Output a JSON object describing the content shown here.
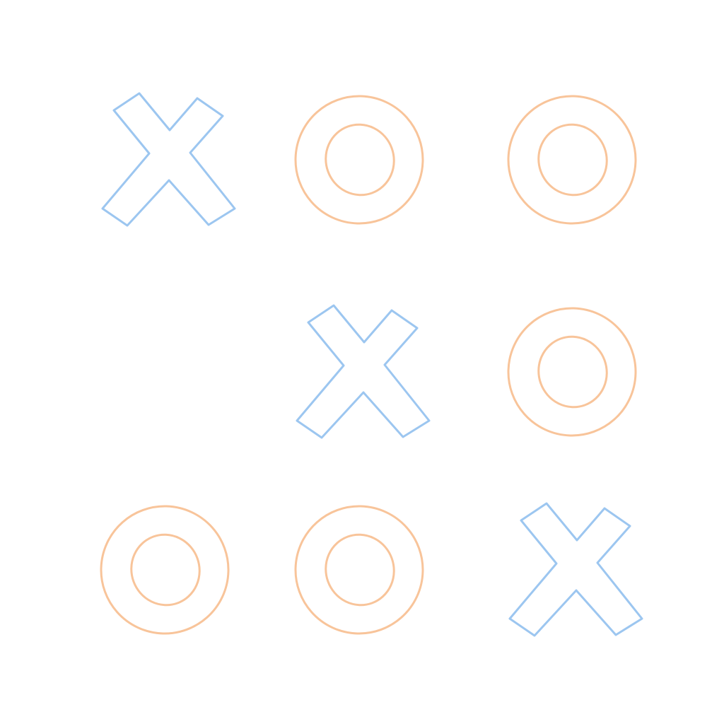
{
  "game": {
    "board": [
      [
        "X",
        "O",
        "O"
      ],
      [
        "",
        "X",
        "O"
      ],
      [
        "O",
        "O",
        "X"
      ]
    ]
  },
  "colors": {
    "background": "#ffffff",
    "grid_line": "#3d9be0",
    "x_mark": "#9cc6f0",
    "o_mark": "#f8c49a"
  },
  "icons": {
    "x": "x-mark-icon",
    "o": "o-mark-icon"
  }
}
